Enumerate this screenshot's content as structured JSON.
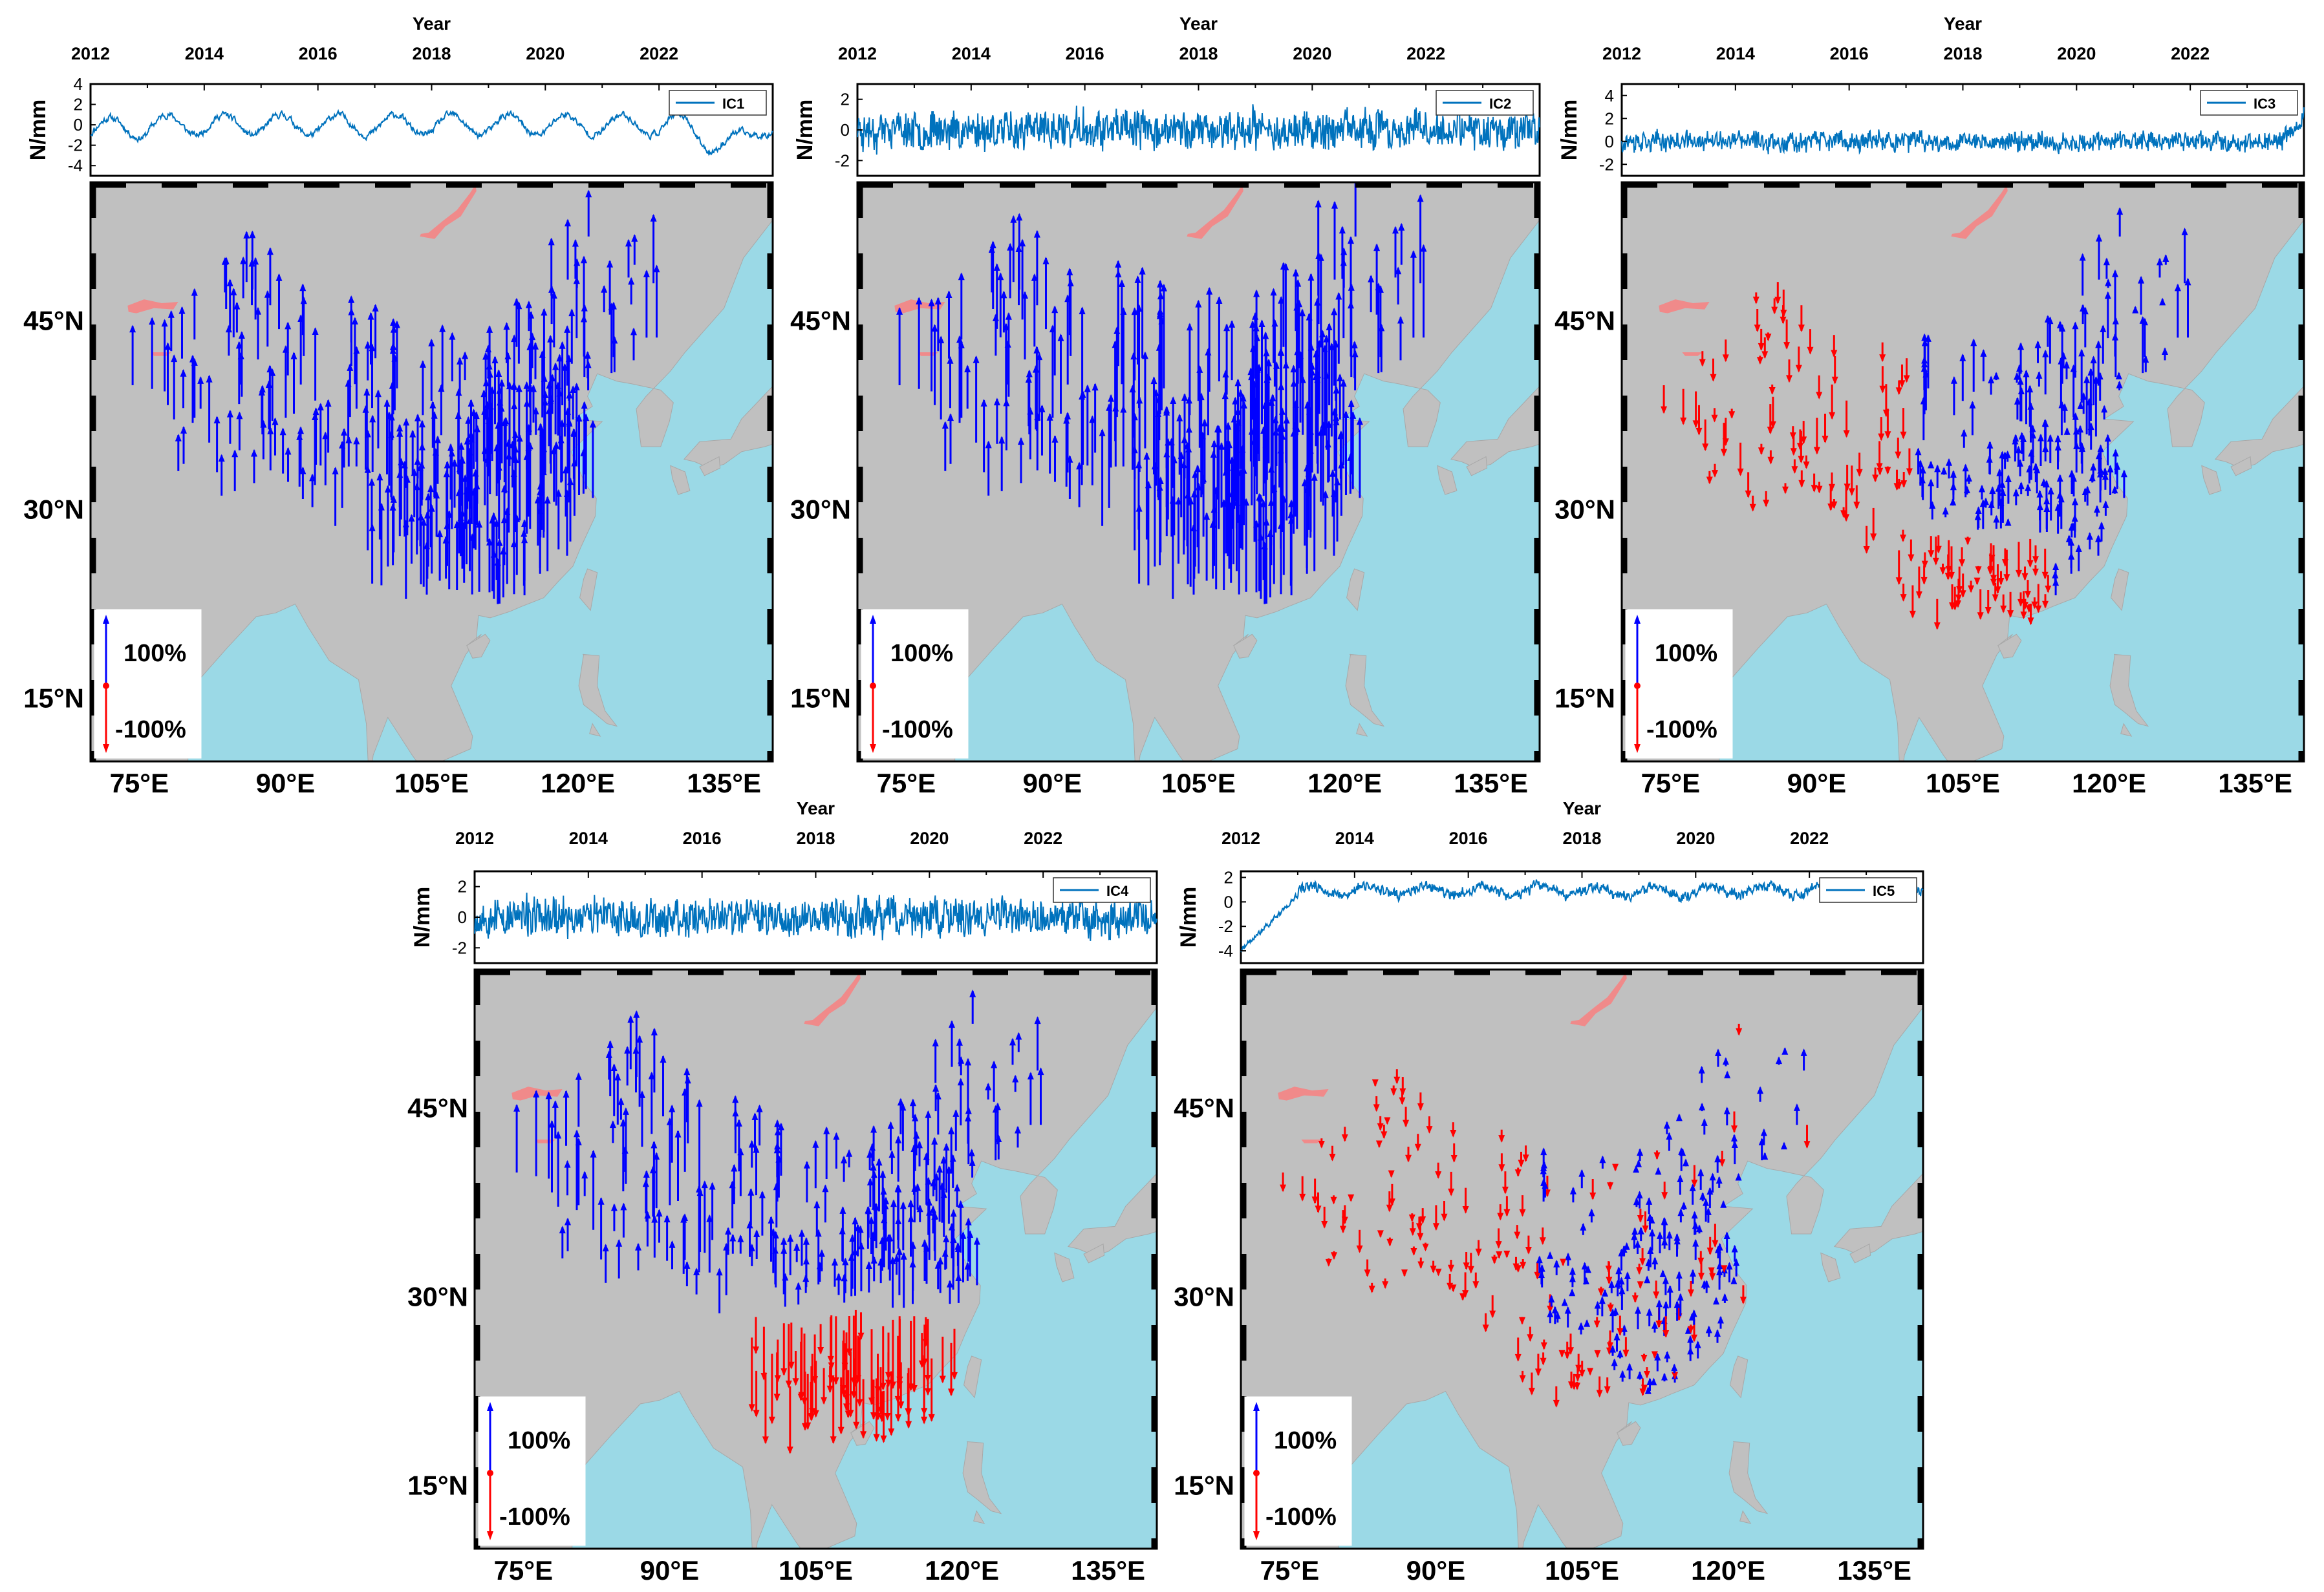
{
  "figure": {
    "x_axis_title": "Year",
    "y_axis_label": "N/mm",
    "year_ticks": [
      "2012",
      "2014",
      "2016",
      "2018",
      "2020",
      "2022"
    ],
    "lon_ticks": [
      "75°E",
      "90°E",
      "105°E",
      "120°E",
      "135°E"
    ],
    "lat_ticks": [
      "45°N",
      "30°N",
      "15°N"
    ],
    "legend_scale": {
      "positive_label": "100%",
      "negative_label": "-100%"
    },
    "colors": {
      "land": "#c0c0c0",
      "sea": "#9bd9e6",
      "lake": "#f08a8a",
      "positive_arrow": "#0000ff",
      "negative_arrow": "#ff0000",
      "series_line": "#0072bd"
    }
  },
  "chart_data": [
    {
      "type": "line+map",
      "component": "IC1",
      "legend": "IC1",
      "series_range": [
        2012,
        2024
      ],
      "yticks": [
        "4",
        "2",
        "0",
        "-2",
        "-4"
      ],
      "ylim": [
        -5,
        4
      ],
      "trend": "annual oscillation, dips near 2023",
      "arrows": "mostly positive (blue), dense in southwest and east China"
    },
    {
      "type": "line+map",
      "component": "IC2",
      "legend": "IC2",
      "series_range": [
        2012,
        2024
      ],
      "yticks": [
        "2",
        "0",
        "-2"
      ],
      "ylim": [
        -3,
        3
      ],
      "trend": "high frequency noise",
      "arrows": "all positive (blue), long arrows across China"
    },
    {
      "type": "line+map",
      "component": "IC3",
      "legend": "IC3",
      "series_range": [
        2012,
        2024
      ],
      "yticks": [
        "4",
        "2",
        "0",
        "-2"
      ],
      "ylim": [
        -3,
        5
      ],
      "trend": "noise with spike near 2024",
      "arrows": "negative (red) in west and south, positive (blue) in east and northeast"
    },
    {
      "type": "line+map",
      "component": "IC4",
      "legend": "IC4",
      "series_range": [
        2012,
        2024
      ],
      "yticks": [
        "2",
        "0",
        "-2"
      ],
      "ylim": [
        -3,
        3
      ],
      "trend": "high frequency noise",
      "arrows": "positive (blue) in north and west, negative (red) in south"
    },
    {
      "type": "line+map",
      "component": "IC5",
      "legend": "IC5",
      "series_range": [
        2012,
        2024
      ],
      "yticks": [
        "2",
        "0",
        "-2",
        "-4"
      ],
      "ylim": [
        -5,
        2.5
      ],
      "trend": "rises from -4 in 2012, stable after",
      "arrows": "mixed, small arrows, red in west and southwest, blue in east"
    }
  ]
}
